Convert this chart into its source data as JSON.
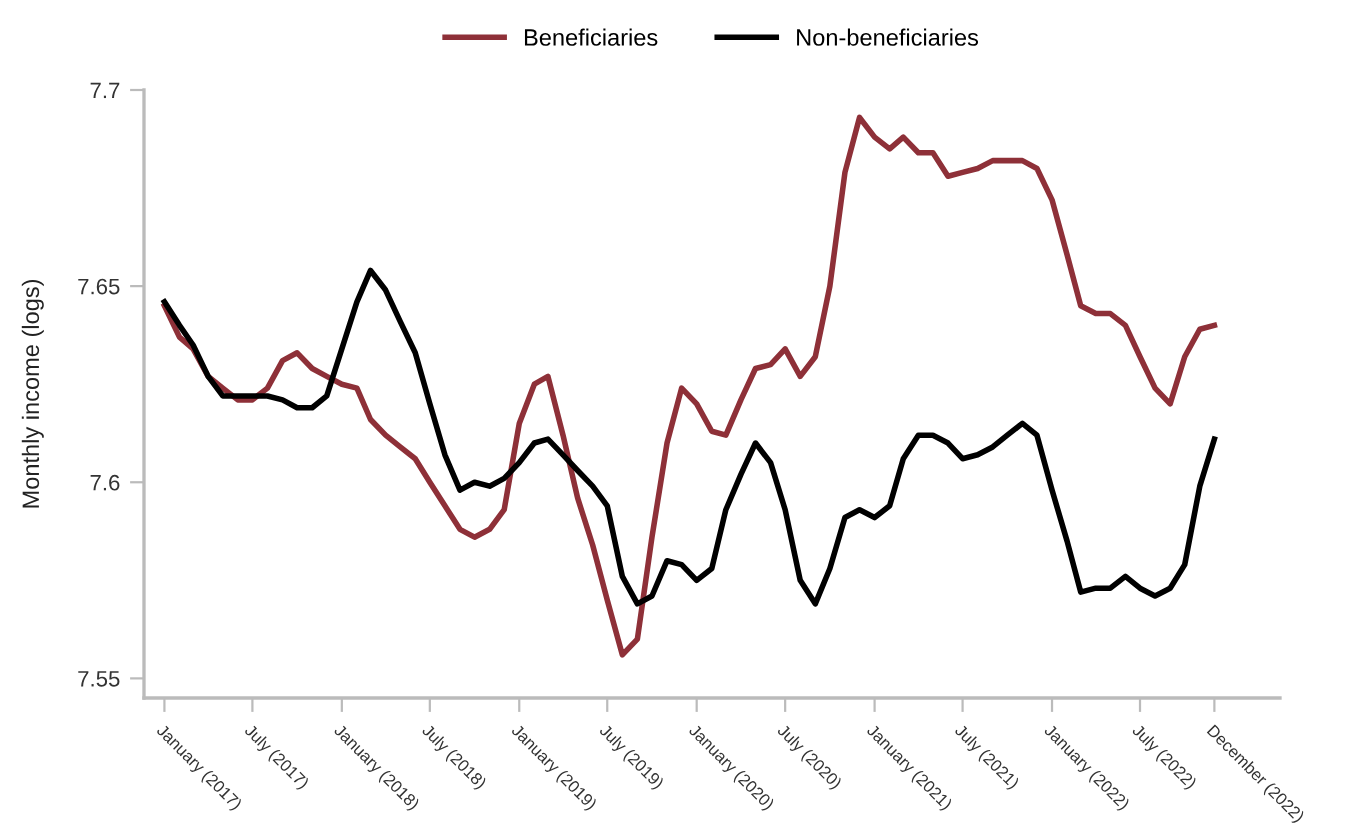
{
  "chart_data": {
    "type": "line",
    "ylabel": "Monthly income (logs)",
    "x": [
      "2017-01",
      "2017-02",
      "2017-03",
      "2017-04",
      "2017-05",
      "2017-06",
      "2017-07",
      "2017-08",
      "2017-09",
      "2017-10",
      "2017-11",
      "2017-12",
      "2018-01",
      "2018-02",
      "2018-03",
      "2018-04",
      "2018-05",
      "2018-06",
      "2018-07",
      "2018-08",
      "2018-09",
      "2018-10",
      "2018-11",
      "2018-12",
      "2019-01",
      "2019-02",
      "2019-03",
      "2019-04",
      "2019-05",
      "2019-06",
      "2019-07",
      "2019-08",
      "2019-09",
      "2019-10",
      "2019-11",
      "2019-12",
      "2020-01",
      "2020-02",
      "2020-03",
      "2020-04",
      "2020-05",
      "2020-06",
      "2020-07",
      "2020-08",
      "2020-09",
      "2020-10",
      "2020-11",
      "2020-12",
      "2021-01",
      "2021-02",
      "2021-03",
      "2021-04",
      "2021-05",
      "2021-06",
      "2021-07",
      "2021-08",
      "2021-09",
      "2021-10",
      "2021-11",
      "2021-12",
      "2022-01",
      "2022-02",
      "2022-03",
      "2022-04",
      "2022-05",
      "2022-06",
      "2022-07",
      "2022-08",
      "2022-09",
      "2022-10",
      "2022-11",
      "2022-12"
    ],
    "series": [
      {
        "name": "Beneficiaries",
        "color": "#8e3038",
        "values": [
          7.645,
          7.637,
          7.634,
          7.627,
          7.624,
          7.621,
          7.621,
          7.624,
          7.631,
          7.633,
          7.629,
          7.627,
          7.625,
          7.624,
          7.616,
          7.612,
          7.609,
          7.606,
          7.6,
          7.594,
          7.588,
          7.586,
          7.588,
          7.593,
          7.615,
          7.625,
          7.627,
          7.612,
          7.596,
          7.584,
          7.57,
          7.556,
          7.56,
          7.586,
          7.61,
          7.624,
          7.62,
          7.613,
          7.612,
          7.621,
          7.629,
          7.63,
          7.634,
          7.627,
          7.632,
          7.65,
          7.679,
          7.693,
          7.688,
          7.685,
          7.688,
          7.684,
          7.684,
          7.678,
          7.679,
          7.68,
          7.682,
          7.682,
          7.682,
          7.68,
          7.672,
          7.658,
          7.645,
          7.643,
          7.643,
          7.64,
          7.632,
          7.624,
          7.62,
          7.632,
          7.639,
          7.64
        ]
      },
      {
        "name": "Non-beneficiaries",
        "color": "#000000",
        "values": [
          7.646,
          7.64,
          7.635,
          7.627,
          7.622,
          7.622,
          7.622,
          7.622,
          7.621,
          7.619,
          7.619,
          7.622,
          7.634,
          7.646,
          7.654,
          7.649,
          7.641,
          7.633,
          7.62,
          7.607,
          7.598,
          7.6,
          7.599,
          7.601,
          7.605,
          7.61,
          7.611,
          7.607,
          7.603,
          7.599,
          7.594,
          7.576,
          7.569,
          7.571,
          7.58,
          7.579,
          7.575,
          7.578,
          7.593,
          7.602,
          7.61,
          7.605,
          7.593,
          7.575,
          7.569,
          7.578,
          7.591,
          7.593,
          7.591,
          7.594,
          7.606,
          7.612,
          7.612,
          7.61,
          7.606,
          7.607,
          7.609,
          7.612,
          7.615,
          7.612,
          7.598,
          7.585,
          7.572,
          7.573,
          7.573,
          7.576,
          7.573,
          7.571,
          7.573,
          7.579,
          7.599,
          7.611
        ]
      }
    ],
    "xlim": [
      "2016-11-20",
      "2023-04-15"
    ],
    "xticks": [
      {
        "value": "2017-01",
        "label": "January (2017)"
      },
      {
        "value": "2017-07",
        "label": "July (2017)"
      },
      {
        "value": "2018-01",
        "label": "January (2018)"
      },
      {
        "value": "2018-07",
        "label": "July (2018)"
      },
      {
        "value": "2019-01",
        "label": "January (2019)"
      },
      {
        "value": "2019-07",
        "label": "July (2019)"
      },
      {
        "value": "2020-01",
        "label": "January (2020)"
      },
      {
        "value": "2020-07",
        "label": "July (2020)"
      },
      {
        "value": "2021-01",
        "label": "January (2021)"
      },
      {
        "value": "2021-07",
        "label": "July (2021)"
      },
      {
        "value": "2022-01",
        "label": "January (2022)"
      },
      {
        "value": "2022-07",
        "label": "July (2022)"
      },
      {
        "value": "2022-12",
        "label": "December (2022)"
      }
    ],
    "ylim": [
      7.545,
      7.7
    ],
    "yticks": [
      7.55,
      7.6,
      7.65,
      7.7
    ],
    "grid": false,
    "legend": "top",
    "marker": "none",
    "line_style": "solid"
  }
}
